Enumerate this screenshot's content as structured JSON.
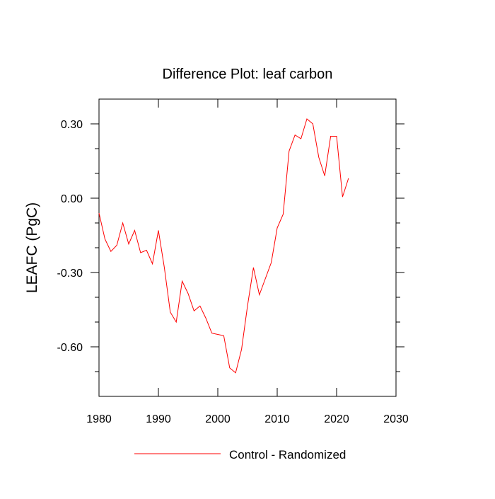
{
  "chart_data": {
    "type": "line",
    "title": "Difference Plot: leaf carbon",
    "xlabel": "",
    "ylabel": "LEAFC  (PgC)",
    "xlim": [
      1980,
      2030
    ],
    "ylim": [
      -0.8,
      0.4
    ],
    "x_ticks": [
      1980,
      1990,
      2000,
      2010,
      2020,
      2030
    ],
    "x_tick_labels": [
      "1980",
      "1990",
      "2000",
      "2010",
      "2020",
      "2030"
    ],
    "y_ticks": [
      0.3,
      0.0,
      -0.3,
      -0.6
    ],
    "y_tick_labels": [
      "0.30",
      "0.00",
      "-0.30",
      "-0.60"
    ],
    "grid": false,
    "legend_position": "bottom-center",
    "series": [
      {
        "name": "Control - Randomized",
        "color": "#ff0000",
        "x": [
          1980,
          1981,
          1982,
          1983,
          1984,
          1985,
          1986,
          1987,
          1988,
          1989,
          1990,
          1991,
          1992,
          1993,
          1994,
          1995,
          1996,
          1997,
          1998,
          1999,
          2000,
          2001,
          2002,
          2003,
          2004,
          2005,
          2006,
          2007,
          2008,
          2009,
          2010,
          2011,
          2012,
          2013,
          2014,
          2015,
          2016,
          2017,
          2018,
          2019,
          2020,
          2021,
          2022
        ],
        "values": [
          -0.06,
          -0.165,
          -0.215,
          -0.19,
          -0.1,
          -0.185,
          -0.13,
          -0.22,
          -0.21,
          -0.265,
          -0.13,
          -0.28,
          -0.46,
          -0.5,
          -0.335,
          -0.385,
          -0.455,
          -0.435,
          -0.485,
          -0.545,
          -0.55,
          -0.555,
          -0.685,
          -0.705,
          -0.61,
          -0.435,
          -0.28,
          -0.39,
          -0.325,
          -0.26,
          -0.12,
          -0.065,
          0.19,
          0.255,
          0.24,
          0.32,
          0.3,
          0.165,
          0.09,
          0.25,
          0.25,
          0.005,
          0.08
        ]
      }
    ]
  }
}
